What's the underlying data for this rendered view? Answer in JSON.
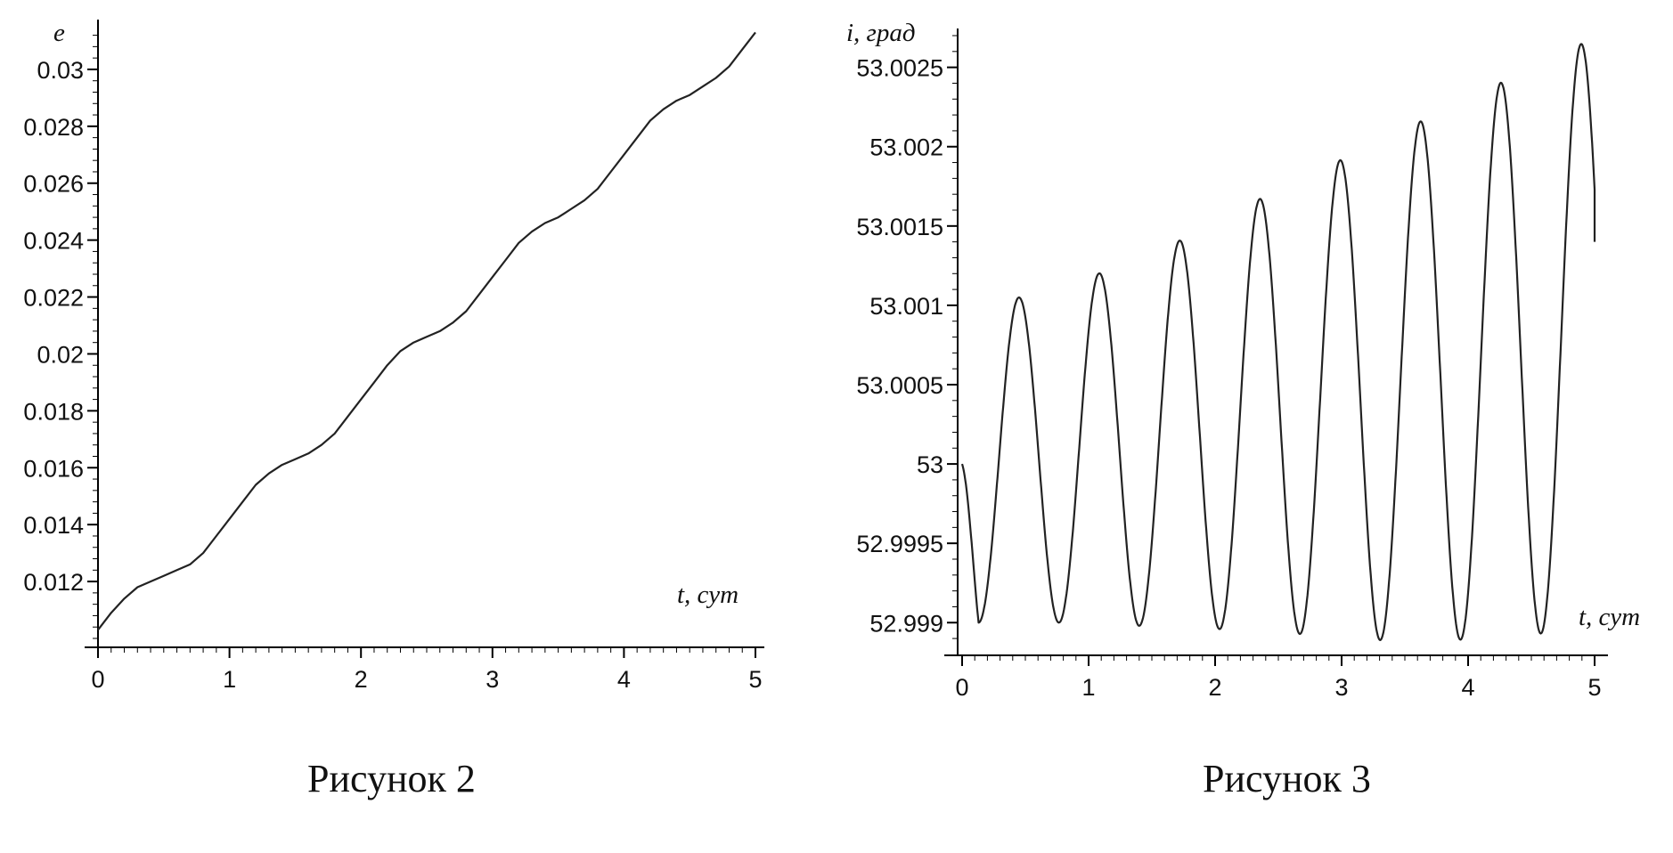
{
  "chart_data": [
    {
      "type": "line",
      "ylabel": "e",
      "xlabel": "t, сут",
      "caption": "Рисунок 2",
      "xlim": [
        0,
        5
      ],
      "ylim": [
        0.01,
        0.0315
      ],
      "xticks": [
        "0",
        "1",
        "2",
        "3",
        "4",
        "5"
      ],
      "yticks": [
        "0.012",
        "0.014",
        "0.016",
        "0.018",
        "0.02",
        "0.022",
        "0.024",
        "0.026",
        "0.028",
        "0.03"
      ],
      "grid": false,
      "series": [
        {
          "x": [
            0,
            0.1,
            0.2,
            0.3,
            0.4,
            0.5,
            0.6,
            0.7,
            0.8,
            0.9,
            1.0,
            1.1,
            1.2,
            1.3,
            1.4,
            1.5,
            1.6,
            1.7,
            1.8,
            1.9,
            2.0,
            2.1,
            2.2,
            2.3,
            2.4,
            2.5,
            2.6,
            2.7,
            2.8,
            2.9,
            3.0,
            3.1,
            3.2,
            3.3,
            3.4,
            3.5,
            3.6,
            3.7,
            3.8,
            3.9,
            4.0,
            4.1,
            4.2,
            4.3,
            4.4,
            4.5,
            4.6,
            4.7,
            4.8,
            4.9,
            5.0
          ],
          "y": [
            0.0103,
            0.0109,
            0.0114,
            0.0118,
            0.012,
            0.0122,
            0.0124,
            0.0126,
            0.013,
            0.0136,
            0.0142,
            0.0148,
            0.0154,
            0.0158,
            0.0161,
            0.0163,
            0.0165,
            0.0168,
            0.0172,
            0.0178,
            0.0184,
            0.019,
            0.0196,
            0.0201,
            0.0204,
            0.0206,
            0.0208,
            0.0211,
            0.0215,
            0.0221,
            0.0227,
            0.0233,
            0.0239,
            0.0243,
            0.0246,
            0.0248,
            0.0251,
            0.0254,
            0.0258,
            0.0264,
            0.027,
            0.0276,
            0.0282,
            0.0286,
            0.0289,
            0.0291,
            0.0294,
            0.0297,
            0.0301,
            0.0307,
            0.0313
          ]
        }
      ]
    },
    {
      "type": "line",
      "ylabel": "i, град",
      "xlabel": "t, сут",
      "caption": "Рисунок 3",
      "xlim": [
        0,
        5
      ],
      "ylim": [
        52.99885,
        53.0027
      ],
      "xticks": [
        "0",
        "1",
        "2",
        "3",
        "4",
        "5"
      ],
      "yticks": [
        "52.999",
        "52.9995",
        "53",
        "53.0005",
        "53.001",
        "53.0015",
        "53.002",
        "53.0025"
      ],
      "grid": false,
      "series": [
        {
          "model": "oscillation",
          "period": 0.635,
          "phase_shift": 0.13,
          "upper_envelope": [
            [
              0.45,
              53.00105
            ],
            [
              1.08,
              53.0012
            ],
            [
              1.7,
              53.0014
            ],
            [
              2.3,
              53.00165
            ],
            [
              2.95,
              53.0019
            ],
            [
              3.6,
              53.00215
            ],
            [
              4.25,
              53.0024
            ],
            [
              4.9,
              53.00265
            ]
          ],
          "lower_envelope": [
            [
              0.13,
              52.999
            ],
            [
              0.77,
              52.999
            ],
            [
              1.4,
              52.99898
            ],
            [
              2.02,
              52.99896
            ],
            [
              2.65,
              52.99893
            ],
            [
              3.27,
              52.99889
            ],
            [
              3.9,
              52.99889
            ],
            [
              4.55,
              52.99893
            ]
          ],
          "start": [
            0,
            53.0
          ],
          "end": [
            5.0,
            53.0014
          ]
        }
      ]
    }
  ]
}
